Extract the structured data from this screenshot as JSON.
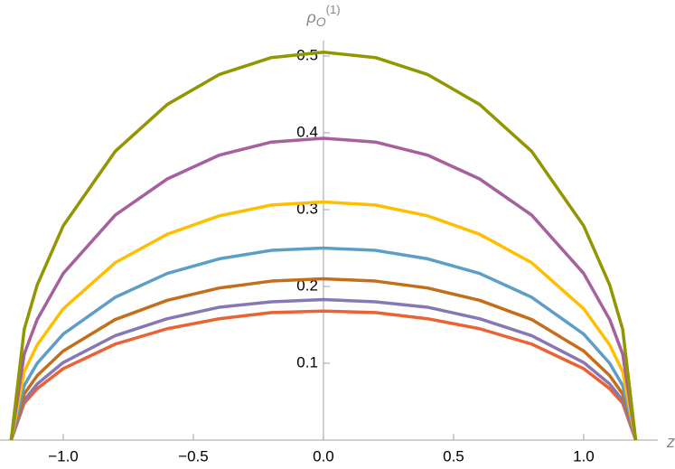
{
  "chart_data": {
    "type": "line",
    "x_label": "z",
    "y_label": {
      "base": "ρ",
      "sub": "O",
      "sup": "(1)"
    },
    "x": [
      -1.2,
      -1.15,
      -1.1,
      -1.0,
      -0.8,
      -0.6,
      -0.4,
      -0.2,
      0,
      0.2,
      0.4,
      0.6,
      0.8,
      1.0,
      1.1,
      1.15,
      1.2
    ],
    "series": [
      {
        "color": "#EB6235",
        "values": [
          0,
          0.048,
          0.067,
          0.093,
          0.125,
          0.145,
          0.158,
          0.166,
          0.168,
          0.166,
          0.158,
          0.145,
          0.125,
          0.093,
          0.067,
          0.048,
          0
        ]
      },
      {
        "color": "#8778B3",
        "values": [
          0,
          0.052,
          0.073,
          0.101,
          0.136,
          0.158,
          0.173,
          0.18,
          0.183,
          0.18,
          0.173,
          0.158,
          0.136,
          0.101,
          0.073,
          0.052,
          0
        ]
      },
      {
        "color": "#C56E1A",
        "values": [
          0,
          0.06,
          0.084,
          0.116,
          0.157,
          0.182,
          0.198,
          0.207,
          0.21,
          0.207,
          0.198,
          0.182,
          0.157,
          0.116,
          0.084,
          0.06,
          0
        ]
      },
      {
        "color": "#5D9EC7",
        "values": [
          0,
          0.071,
          0.1,
          0.138,
          0.186,
          0.217,
          0.236,
          0.247,
          0.25,
          0.247,
          0.236,
          0.217,
          0.186,
          0.138,
          0.1,
          0.071,
          0
        ]
      },
      {
        "color": "#FFBF00",
        "values": [
          0,
          0.089,
          0.124,
          0.171,
          0.231,
          0.268,
          0.292,
          0.306,
          0.31,
          0.306,
          0.292,
          0.268,
          0.231,
          0.171,
          0.124,
          0.089,
          0
        ]
      },
      {
        "color": "#A5609D",
        "values": [
          0,
          0.112,
          0.157,
          0.217,
          0.293,
          0.34,
          0.371,
          0.388,
          0.393,
          0.388,
          0.371,
          0.34,
          0.293,
          0.217,
          0.157,
          0.112,
          0
        ]
      },
      {
        "color": "#929600",
        "values": [
          0,
          0.144,
          0.202,
          0.279,
          0.376,
          0.437,
          0.476,
          0.498,
          0.505,
          0.498,
          0.476,
          0.437,
          0.376,
          0.279,
          0.202,
          0.144,
          0
        ]
      }
    ],
    "xlim": [
      -1.243,
      1.285
    ],
    "ylim": [
      0,
      0.52
    ],
    "xticks": [
      {
        "value": -1.0,
        "label": "−1.0"
      },
      {
        "value": -0.5,
        "label": "−0.5"
      },
      {
        "value": 0,
        "label": "0.0"
      },
      {
        "value": 0.5,
        "label": "0.5"
      },
      {
        "value": 1.0,
        "label": "1.0"
      }
    ],
    "yticks": [
      0.1,
      0.2,
      0.3,
      0.4,
      0.5
    ]
  }
}
